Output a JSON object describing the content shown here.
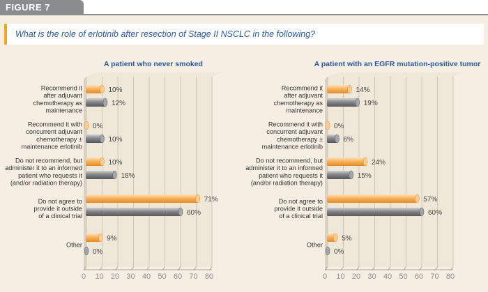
{
  "figure_label": "FIGURE 7",
  "question": "What is the role of erlotinib after resection of Stage II NSCLC in the following?",
  "colors": {
    "orange": "#f8b25c",
    "gray": "#85878b",
    "accent": "#f5a623",
    "title": "#2d5a9e"
  },
  "chart_data": [
    {
      "type": "bar",
      "orientation": "horizontal",
      "title": "A patient who never smoked",
      "categories": [
        [
          "Recommend it",
          "after adjuvant",
          "chemotherapy as",
          "maintenance"
        ],
        [
          "Recommend it with",
          "concurrent adjuvant",
          "chemotherapy ±",
          "maintenance erlotinib"
        ],
        [
          "Do not recommend, but",
          "administer it to an informed",
          "patient who requests it",
          "(and/or radiation therapy)"
        ],
        [
          "Do not agree to",
          "provide it outside",
          "of a clinical trial"
        ],
        [
          "Other"
        ]
      ],
      "series": [
        {
          "color": "orange",
          "values": [
            10,
            0,
            10,
            71,
            9
          ]
        },
        {
          "color": "gray",
          "values": [
            12,
            10,
            18,
            60,
            0
          ]
        }
      ],
      "data_labels": [
        [
          "10%",
          "0%",
          "10%",
          "71%",
          "9%"
        ],
        [
          "12%",
          "10%",
          "18%",
          "60%",
          "0%"
        ]
      ],
      "xlim": [
        0,
        80
      ],
      "xticks": [
        "0",
        "10",
        "20",
        "30",
        "40",
        "50",
        "60",
        "70",
        "80"
      ],
      "grid": true
    },
    {
      "type": "bar",
      "orientation": "horizontal",
      "title": "A patient with an EGFR mutation-positive tumor",
      "categories": [
        [
          "Recommend it",
          "after adjuvant",
          "chemotherapy as",
          "maintenance"
        ],
        [
          "Recommend it with",
          "concurrent adjuvant",
          "chemotherapy ±",
          "maintenance erlotinib"
        ],
        [
          "Do not recommend, but",
          "administer it to an informed",
          "patient who requests it",
          "(and/or radiation therapy)"
        ],
        [
          "Do not agree to",
          "provide it outside",
          "of a clinical trial"
        ],
        [
          "Other"
        ]
      ],
      "series": [
        {
          "color": "orange",
          "values": [
            14,
            0,
            24,
            57,
            5
          ]
        },
        {
          "color": "gray",
          "values": [
            19,
            6,
            15,
            60,
            0
          ]
        }
      ],
      "data_labels": [
        [
          "14%",
          "0%",
          "24%",
          "57%",
          "5%"
        ],
        [
          "19%",
          "6%",
          "15%",
          "60%",
          "0%"
        ]
      ],
      "xlim": [
        0,
        80
      ],
      "xticks": [
        "0",
        "10",
        "20",
        "30",
        "40",
        "50",
        "60",
        "70",
        "80"
      ],
      "grid": true
    }
  ]
}
